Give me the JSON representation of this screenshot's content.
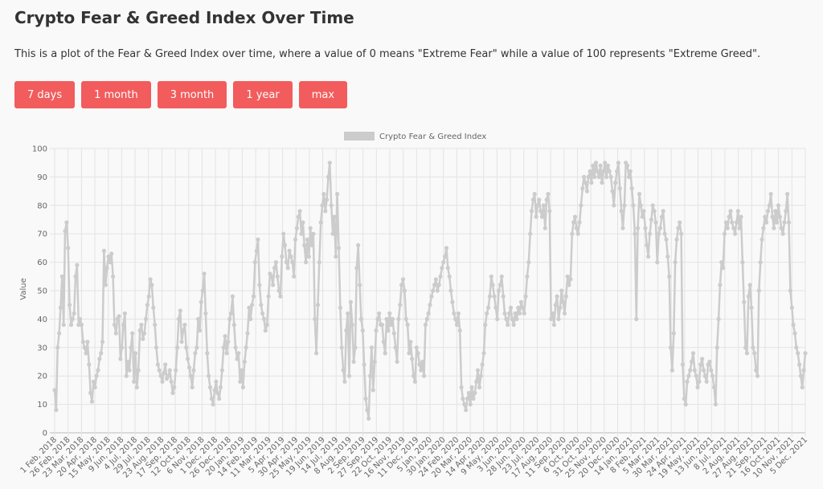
{
  "page": {
    "title": "Crypto Fear & Greed Index Over Time",
    "description": "This is a plot of the Fear & Greed Index over time, where a value of 0 means \"Extreme Fear\" while a value of 100 represents \"Extreme Greed\"."
  },
  "range_buttons": [
    {
      "label": "7 days"
    },
    {
      "label": "1 month"
    },
    {
      "label": "3 month"
    },
    {
      "label": "1 year"
    },
    {
      "label": "max"
    }
  ],
  "chart_data": {
    "type": "line",
    "title": "",
    "xlabel": "",
    "ylabel": "Value",
    "ylim": [
      0,
      100
    ],
    "yticks": [
      0,
      10,
      20,
      30,
      40,
      50,
      60,
      70,
      80,
      90,
      100
    ],
    "grid": true,
    "legend": "top-center",
    "color": "#cccccc",
    "x_tick_labels": [
      "1 Feb, 2018",
      "26 Feb, 2018",
      "23 Mar, 2018",
      "20 Apr, 2018",
      "15 May, 2018",
      "9 Jun, 2018",
      "4 Jul, 2018",
      "29 Jul, 2018",
      "23 Aug, 2018",
      "17 Sep, 2018",
      "12 Oct, 2018",
      "6 Nov, 2018",
      "1 Dec, 2018",
      "26 Dec, 2018",
      "20 Jan, 2019",
      "14 Feb, 2019",
      "11 Mar, 2019",
      "5 Apr, 2019",
      "30 Apr, 2019",
      "25 May, 2019",
      "19 Jun, 2019",
      "14 Jul, 2019",
      "8 Aug, 2019",
      "2 Sep, 2019",
      "27 Sep, 2019",
      "22 Oct, 2019",
      "16 Nov, 2019",
      "11 Dec, 2019",
      "5 Jan, 2020",
      "30 Jan, 2020",
      "24 Feb, 2020",
      "20 Mar, 2020",
      "14 Apr, 2020",
      "9 May, 2020",
      "3 Jun, 2020",
      "28 Jun, 2020",
      "23 Jul, 2020",
      "17 Aug, 2020",
      "11 Sep, 2020",
      "6 Oct, 2020",
      "31 Oct, 2020",
      "25 Nov, 2020",
      "20 Dec, 2020",
      "14 Jan, 2021",
      "8 Feb, 2021",
      "5 Mar, 2021",
      "30 Mar, 2021",
      "24 Apr, 2021",
      "19 May, 2021",
      "13 Jun, 2021",
      "8 Jul, 2021",
      "2 Aug, 2021",
      "27 Aug, 2021",
      "21 Sep, 2021",
      "16 Oct, 2021",
      "10 Nov, 2021",
      "5 Dec, 2021"
    ],
    "series": [
      {
        "name": "Crypto Fear & Greed Index",
        "x_start": "2018-02-01",
        "x_end": "2021-12-10",
        "values": [
          15,
          8,
          30,
          35,
          44,
          55,
          38,
          71,
          74,
          65,
          45,
          38,
          40,
          42,
          55,
          59,
          38,
          40,
          38,
          32,
          30,
          28,
          32,
          24,
          14,
          11,
          18,
          16,
          20,
          22,
          26,
          28,
          32,
          64,
          52,
          58,
          62,
          60,
          63,
          55,
          38,
          35,
          40,
          41,
          26,
          30,
          38,
          42,
          20,
          25,
          22,
          30,
          35,
          18,
          28,
          16,
          22,
          36,
          38,
          33,
          35,
          40,
          45,
          48,
          54,
          52,
          44,
          38,
          30,
          24,
          22,
          20,
          18,
          21,
          24,
          19,
          20,
          22,
          18,
          14,
          16,
          22,
          30,
          40,
          43,
          32,
          36,
          38,
          30,
          26,
          23,
          20,
          16,
          22,
          28,
          30,
          40,
          36,
          46,
          50,
          56,
          42,
          28,
          20,
          16,
          12,
          10,
          15,
          18,
          14,
          12,
          16,
          22,
          30,
          34,
          28,
          32,
          40,
          42,
          48,
          38,
          30,
          26,
          28,
          18,
          22,
          16,
          25,
          30,
          35,
          44,
          40,
          45,
          48,
          60,
          64,
          68,
          52,
          45,
          42,
          40,
          36,
          38,
          48,
          56,
          55,
          52,
          58,
          60,
          55,
          50,
          48,
          62,
          70,
          66,
          60,
          58,
          64,
          62,
          60,
          55,
          68,
          72,
          76,
          78,
          70,
          74,
          66,
          60,
          68,
          62,
          72,
          66,
          70,
          40,
          28,
          45,
          60,
          74,
          80,
          84,
          78,
          82,
          90,
          95,
          80,
          70,
          76,
          62,
          84,
          65,
          44,
          30,
          22,
          18,
          36,
          42,
          20,
          46,
          38,
          25,
          30,
          58,
          66,
          52,
          40,
          36,
          24,
          12,
          8,
          5,
          20,
          30,
          15,
          25,
          36,
          40,
          42,
          38,
          38,
          32,
          28,
          40,
          36,
          42,
          38,
          40,
          35,
          30,
          25,
          40,
          45,
          52,
          54,
          50,
          40,
          38,
          28,
          32,
          26,
          20,
          18,
          30,
          28,
          24,
          22,
          25,
          20,
          38,
          40,
          42,
          45,
          48,
          50,
          52,
          54,
          50,
          52,
          55,
          58,
          60,
          62,
          65,
          58,
          55,
          50,
          46,
          42,
          40,
          38,
          42,
          36,
          16,
          12,
          10,
          8,
          12,
          14,
          10,
          16,
          12,
          14,
          18,
          22,
          16,
          20,
          24,
          28,
          38,
          42,
          44,
          48,
          55,
          52,
          48,
          44,
          40,
          50,
          52,
          55,
          48,
          42,
          40,
          38,
          42,
          44,
          40,
          38,
          42,
          40,
          44,
          42,
          46,
          44,
          42,
          48,
          55,
          60,
          70,
          78,
          82,
          84,
          76,
          80,
          82,
          78,
          76,
          80,
          72,
          82,
          84,
          78,
          40,
          42,
          38,
          45,
          48,
          40,
          44,
          50,
          46,
          42,
          48,
          55,
          52,
          54,
          70,
          74,
          76,
          72,
          70,
          74,
          80,
          86,
          90,
          88,
          85,
          90,
          92,
          88,
          94,
          90,
          95,
          92,
          90,
          94,
          88,
          92,
          95,
          90,
          94,
          92,
          90,
          85,
          80,
          88,
          92,
          95,
          86,
          78,
          72,
          80,
          95,
          94,
          90,
          92,
          86,
          80,
          70,
          40,
          72,
          84,
          80,
          76,
          78,
          72,
          66,
          62,
          70,
          75,
          80,
          78,
          74,
          60,
          70,
          72,
          76,
          78,
          70,
          68,
          62,
          55,
          30,
          22,
          35,
          60,
          68,
          72,
          74,
          70,
          24,
          12,
          10,
          18,
          20,
          22,
          25,
          28,
          22,
          20,
          16,
          18,
          24,
          26,
          22,
          20,
          18,
          24,
          25,
          22,
          20,
          16,
          10,
          30,
          40,
          52,
          60,
          58,
          70,
          74,
          72,
          76,
          78,
          74,
          72,
          70,
          74,
          78,
          72,
          76,
          60,
          46,
          30,
          28,
          48,
          52,
          44,
          30,
          28,
          22,
          20,
          50,
          60,
          68,
          72,
          76,
          74,
          78,
          80,
          84,
          76,
          72,
          78,
          74,
          80,
          76,
          72,
          70,
          74,
          78,
          84,
          74,
          50,
          44,
          38,
          35,
          30,
          28,
          24,
          20,
          16,
          22,
          28
        ]
      }
    ]
  }
}
